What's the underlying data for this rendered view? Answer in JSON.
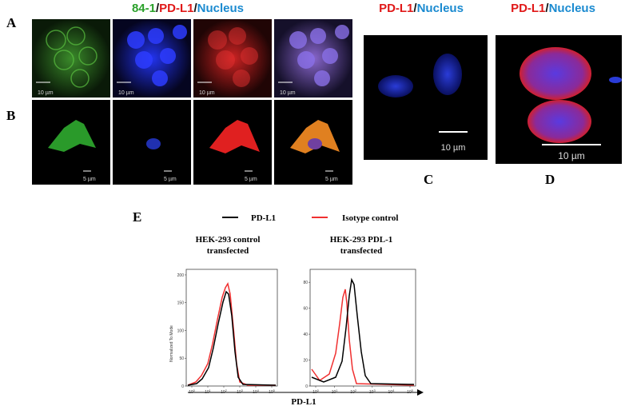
{
  "figure": {
    "header_left": {
      "parts": [
        "84-1",
        "/",
        "PD-L1",
        "/",
        "Nucleus"
      ]
    },
    "header_right": {
      "parts": [
        "PD-L1",
        "/",
        "Nucleus"
      ]
    },
    "panel_labels": [
      "A",
      "B",
      "C",
      "D",
      "E"
    ],
    "scale_bars": {
      "row_a": [
        "10 µm",
        "10 µm",
        "10 µm",
        "10 µm"
      ],
      "row_b": [
        "5 µm",
        "5 µm",
        "5 µm",
        "5 µm"
      ],
      "c": "10 µm",
      "d": "10 µm"
    },
    "flow": {
      "legend": [
        "PD-L1",
        "Isotype control"
      ],
      "plots": [
        {
          "title_lines": [
            "HEK-293 control",
            "transfected"
          ],
          "ylim": [
            0,
            210
          ],
          "yticks": [
            200,
            150,
            100,
            50,
            0
          ]
        },
        {
          "title_lines": [
            "HEK-293 PDL-1",
            "transfected"
          ],
          "ylim": [
            0,
            90
          ],
          "yticks": [
            80,
            60,
            40,
            20,
            0
          ]
        }
      ],
      "y_label": "Normalized To Mode",
      "x_tick_base": "10",
      "x_tick_exponents": [
        "0",
        "1",
        "2",
        "3",
        "4",
        "5"
      ],
      "x_label": "PD-L1"
    }
  }
}
